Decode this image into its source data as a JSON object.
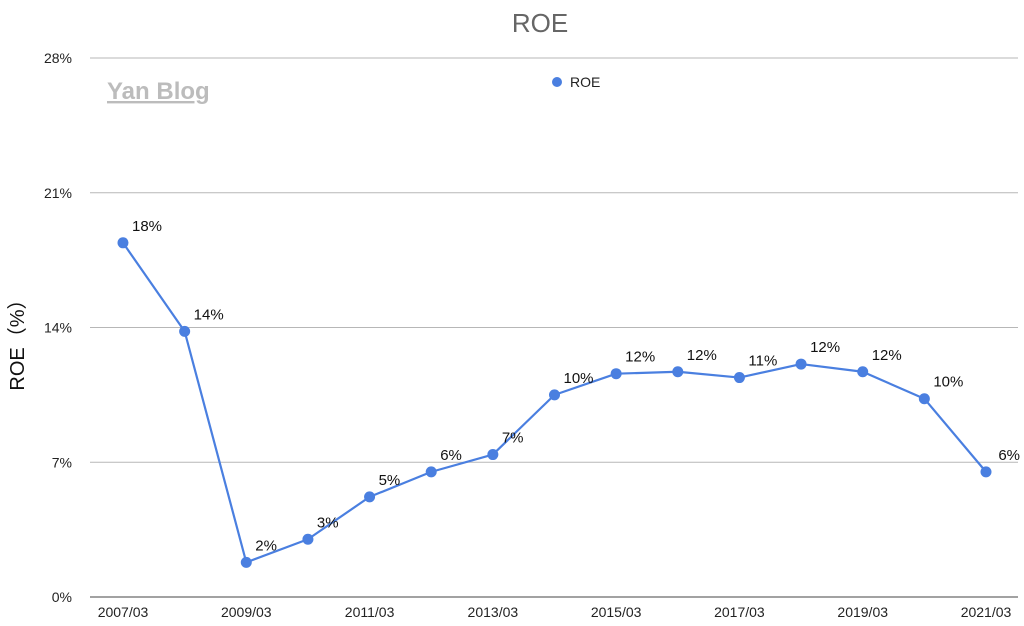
{
  "watermark": "Yan Blog",
  "chart_data": {
    "type": "line",
    "title": "ROE",
    "xlabel": "",
    "ylabel": "ROE（%）",
    "x_tick_labels": [
      "2007/03",
      "2009/03",
      "2011/03",
      "2013/03",
      "2015/03",
      "2017/03",
      "2019/03",
      "2021/03"
    ],
    "y_tick_labels": [
      "0%",
      "7%",
      "14%",
      "21%",
      "28%"
    ],
    "ylim": [
      0,
      28
    ],
    "grid": true,
    "legend_position": "top-center",
    "series": [
      {
        "name": "ROE",
        "color": "#4a7fe0",
        "x": [
          "2007/03",
          "2008/03",
          "2009/03",
          "2010/03",
          "2011/03",
          "2012/03",
          "2013/03",
          "2014/03",
          "2015/03",
          "2016/03",
          "2017/03",
          "2018/03",
          "2019/03",
          "2020/03",
          "2021/03"
        ],
        "values": [
          18.4,
          13.8,
          1.8,
          3.0,
          5.2,
          6.5,
          7.4,
          10.5,
          11.6,
          11.7,
          11.4,
          12.1,
          11.7,
          10.3,
          6.5
        ],
        "labels": [
          "18%",
          "14%",
          "2%",
          "3%",
          "5%",
          "6%",
          "7%",
          "10%",
          "12%",
          "12%",
          "11%",
          "12%",
          "12%",
          "10%",
          "6%"
        ]
      }
    ]
  }
}
